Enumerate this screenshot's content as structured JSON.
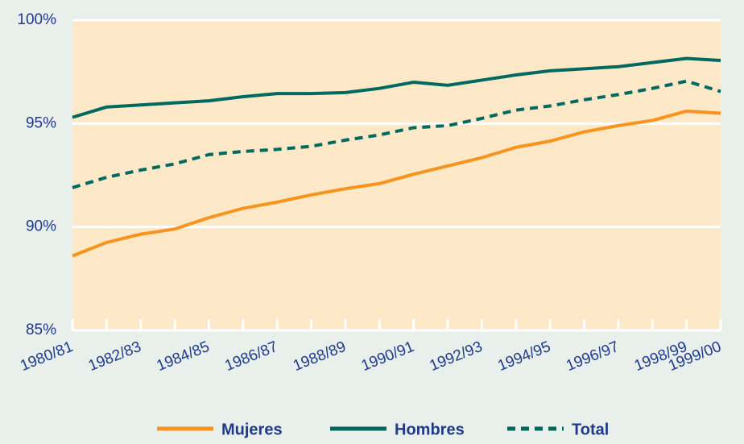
{
  "chart_data": {
    "type": "line",
    "categories": [
      "1980/81",
      null,
      "1982/83",
      null,
      "1984/85",
      null,
      "1986/87",
      null,
      "1988/89",
      null,
      "1990/91",
      null,
      "1992/93",
      null,
      "1994/95",
      null,
      "1996/97",
      null,
      "1998/99",
      "1999/00"
    ],
    "series": [
      {
        "name": "Mujeres",
        "color": "#f7941d",
        "dash": false,
        "values": [
          88.6,
          89.25,
          89.65,
          89.9,
          90.45,
          90.9,
          91.2,
          91.55,
          91.85,
          92.1,
          92.55,
          92.95,
          93.35,
          93.85,
          94.15,
          94.6,
          94.9,
          95.15,
          95.6,
          95.5
        ]
      },
      {
        "name": "Hombres",
        "color": "#00695f",
        "dash": false,
        "values": [
          95.3,
          95.8,
          95.9,
          96.0,
          96.1,
          96.3,
          96.45,
          96.45,
          96.5,
          96.7,
          97.0,
          96.85,
          97.1,
          97.35,
          97.55,
          97.65,
          97.75,
          97.95,
          98.15,
          98.05
        ]
      },
      {
        "name": "Total",
        "color": "#00695f",
        "dash": true,
        "values": [
          91.9,
          92.4,
          92.75,
          93.05,
          93.5,
          93.65,
          93.75,
          93.9,
          94.2,
          94.45,
          94.8,
          94.9,
          95.25,
          95.65,
          95.85,
          96.15,
          96.4,
          96.7,
          97.05,
          96.55
        ]
      }
    ],
    "ylim": [
      85,
      100
    ],
    "yticks": [
      {
        "value": 85,
        "label": "85%"
      },
      {
        "value": 90,
        "label": "90%"
      },
      {
        "value": 95,
        "label": "95%"
      },
      {
        "value": 100,
        "label": "100%"
      }
    ],
    "grid": true,
    "legend": "bottom",
    "plot_color": "#fde8c8"
  }
}
